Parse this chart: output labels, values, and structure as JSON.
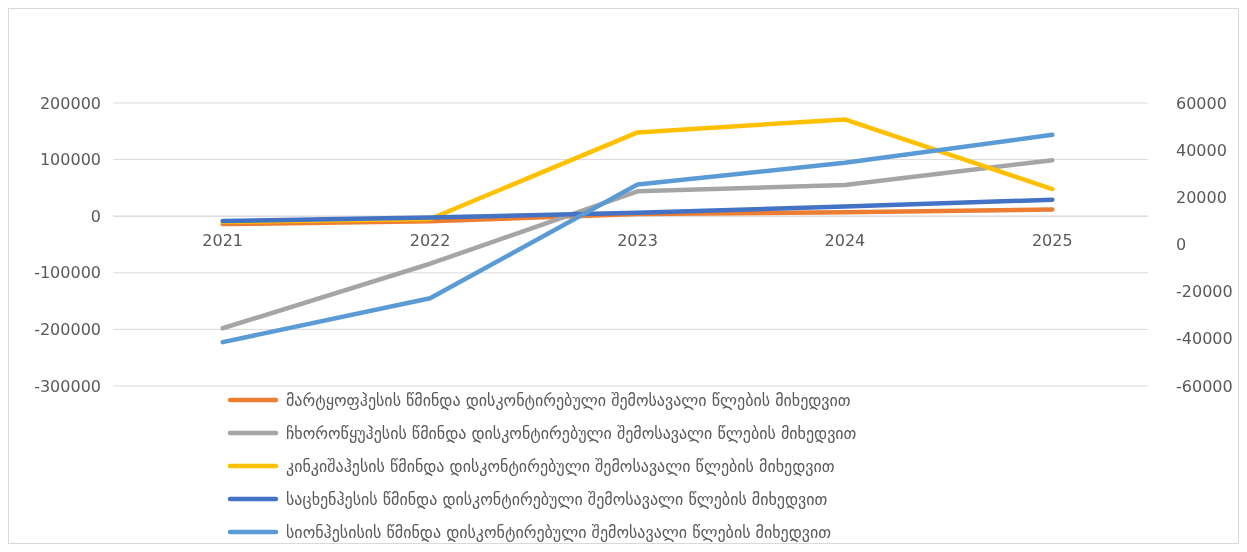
{
  "chart_data": {
    "type": "line",
    "categories": [
      "2021",
      "2022",
      "2023",
      "2024",
      "2025"
    ],
    "series": [
      {
        "name": "მარტყოფჰესის წმინდა დისკონტირებული შემოსავალი წლების მიხედვით",
        "color": "#ed7d31",
        "values": [
          -14000,
          -9000,
          4000,
          7000,
          12000
        ]
      },
      {
        "name": "ჩხოროწყუჰესის წმინდა დისკონტირებული შემოსავალი წლების მიხედვით",
        "color": "#a5a5a5",
        "values": [
          -198000,
          -84000,
          44000,
          55000,
          99000
        ]
      },
      {
        "name": "კინკიშაჰესის წმინდა დისკონტირებული შემოსავალი წლების მიხედვით",
        "color": "#ffc000",
        "values": [
          -10000,
          -5000,
          148000,
          171000,
          48000
        ]
      },
      {
        "name": "საცხენჰესის წმინდა დისკონტირებული შემოსავალი წლების მიხედვით",
        "color": "#4472c4",
        "axis": "y2",
        "values": [
          10000,
          11400,
          13500,
          16100,
          19000
        ]
      },
      {
        "name": "სიონჰესისის წმინდა დისკონტირებული შემოსავალი წლების მიხედვით",
        "color": "#5b9bd5",
        "axis": "y2",
        "values": [
          -41400,
          -22800,
          25400,
          34700,
          46500
        ]
      }
    ],
    "ylim": [
      -300000,
      200000
    ],
    "yticks": [
      -300000,
      -200000,
      -100000,
      0,
      100000,
      200000
    ],
    "y2lim": [
      -60000,
      60000
    ],
    "y2ticks": [
      -60000,
      -40000,
      -20000,
      0,
      20000,
      40000,
      60000
    ],
    "grid": "y",
    "legend": "bottom",
    "marker": "none",
    "line_style": "solid"
  }
}
